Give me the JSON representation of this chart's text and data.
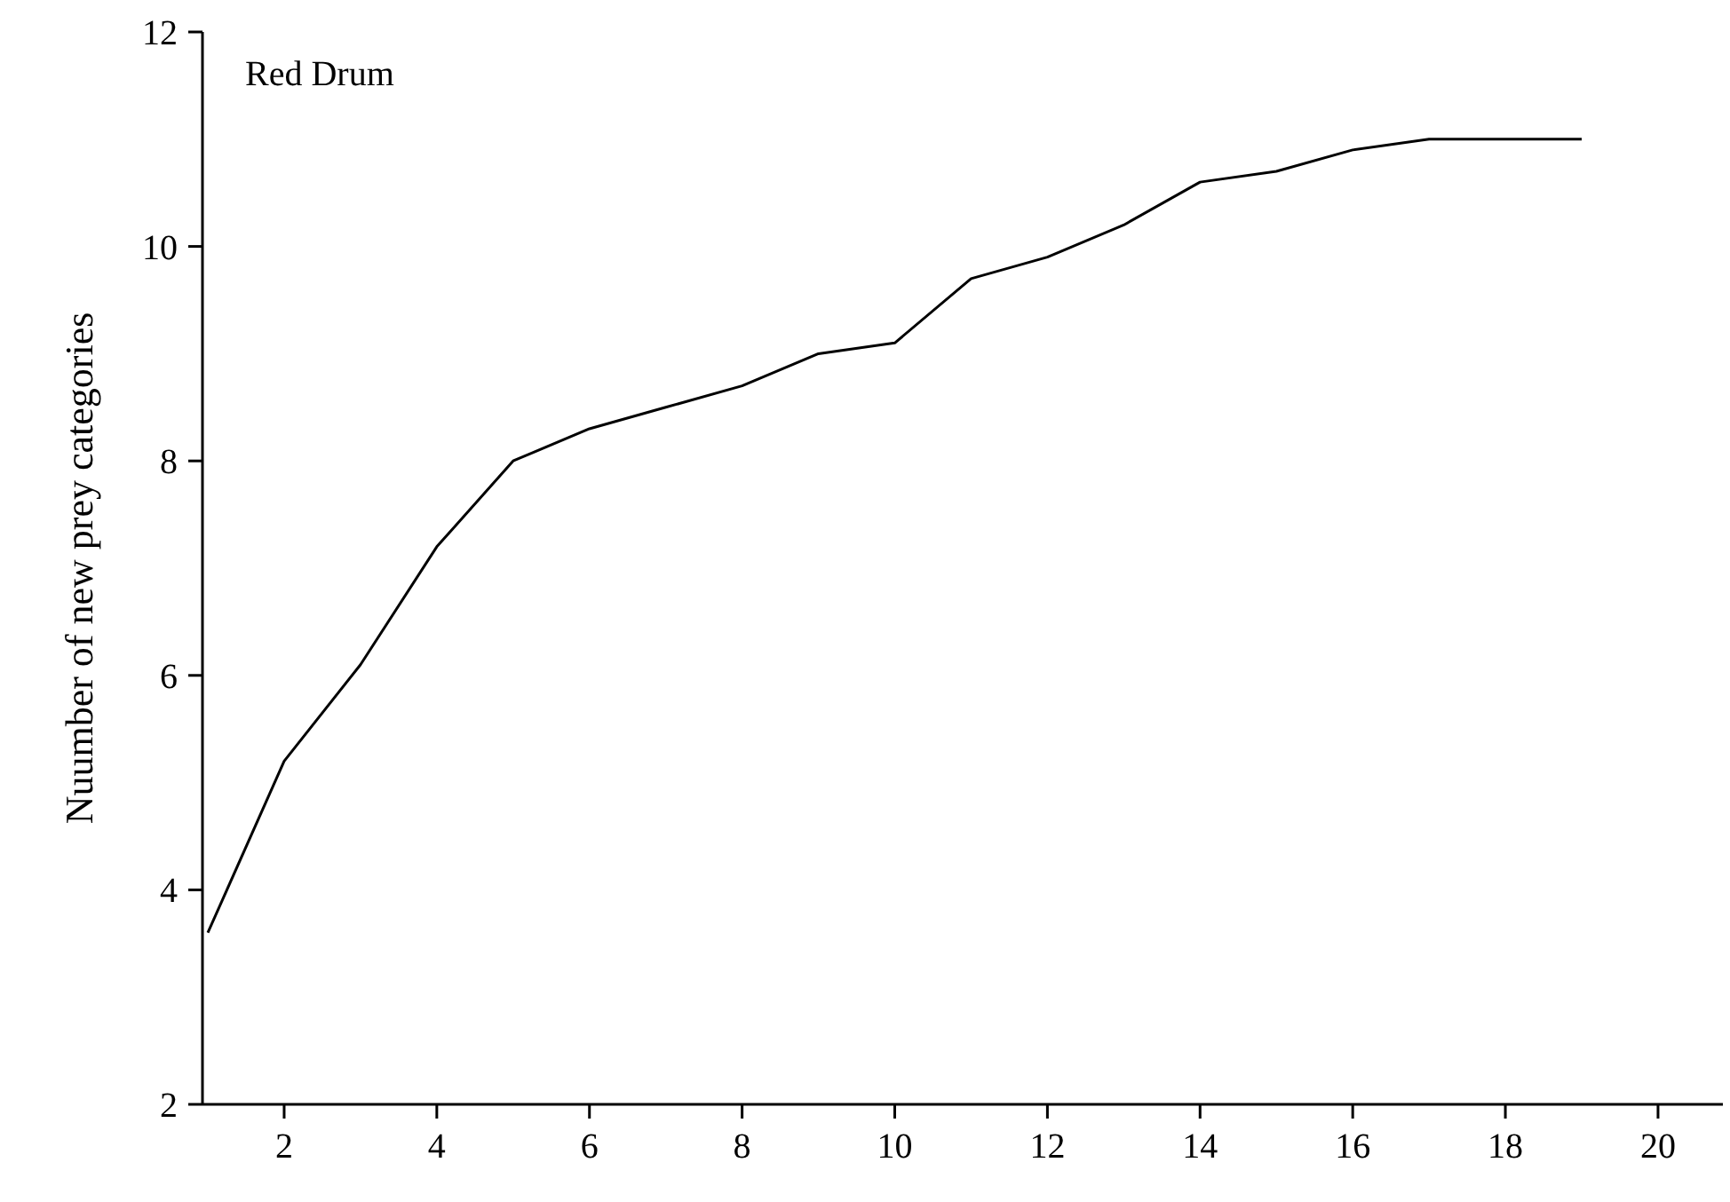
{
  "chart_data": {
    "type": "line",
    "ylabel": "Nuumber of new prey categories",
    "annotations": [
      "Red Drum"
    ],
    "x": [
      1,
      2,
      3,
      4,
      5,
      6,
      7,
      8,
      9,
      10,
      11,
      12,
      13,
      14,
      15,
      16,
      17,
      18,
      19
    ],
    "series": [
      {
        "color": "#000000",
        "values": [
          3.6,
          5.2,
          6.1,
          7.2,
          8.0,
          8.3,
          8.5,
          8.7,
          9.0,
          9.1,
          9.7,
          9.9,
          10.2,
          10.6,
          10.7,
          10.9,
          11.0,
          11.0,
          11.0
        ]
      }
    ],
    "xlim": [
      0.93,
      20.85
    ],
    "xticks": [
      2,
      4,
      6,
      8,
      10,
      12,
      14,
      16,
      18,
      20
    ],
    "ylim": [
      2,
      12
    ],
    "yticks": [
      2,
      4,
      6,
      8,
      10,
      12
    ],
    "grid": false,
    "marker": "none",
    "line_style": "solid"
  }
}
